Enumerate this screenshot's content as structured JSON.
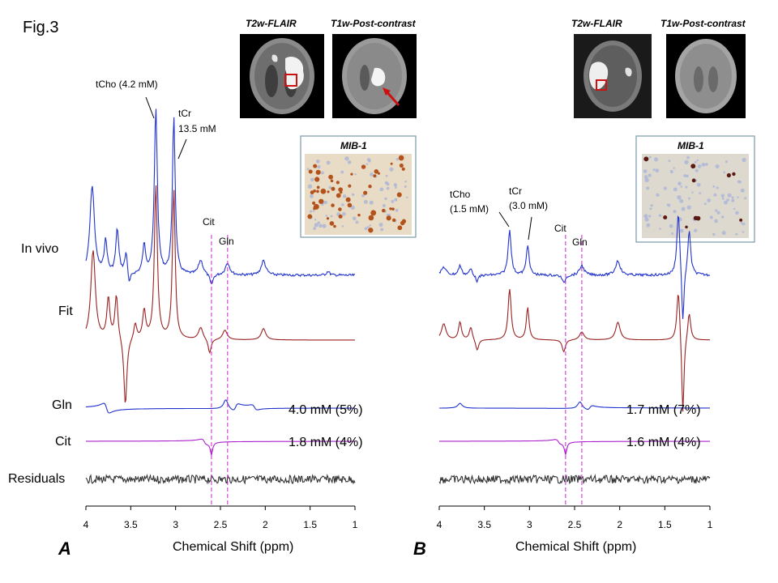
{
  "figure_label": "Fig.3",
  "row_labels": {
    "invivo": "In vivo",
    "fit": "Fit",
    "gln": "Gln",
    "cit": "Cit",
    "residuals": "Residuals"
  },
  "axis": {
    "xlabel": "Chemical Shift (ppm)",
    "ticks": [
      "4",
      "3.5",
      "3",
      "2.5",
      "2",
      "1.5",
      "1"
    ]
  },
  "colors": {
    "invivo": "#2233cc",
    "fit": "#992222",
    "gln": "#2233cc",
    "cit": "#aa22cc",
    "residuals": "#333333",
    "marker": "#cc22cc"
  },
  "panels": {
    "A": {
      "letter": "A",
      "mri_label_1": "T2w-FLAIR",
      "mri_label_2": "T1w-Post-contrast",
      "stain_label": "MIB-1",
      "tcho": "tCho (4.2 mM)",
      "tcr_1": "tCr",
      "tcr_2": "13.5 mM",
      "cit_marker": "Cit",
      "gln_marker": "Gln",
      "gln_conc": "4.0 mM (5%)",
      "cit_conc": "1.8 mM (4%)"
    },
    "B": {
      "letter": "B",
      "mri_label_1": "T2w-FLAIR",
      "mri_label_2": "T1w-Post-contrast",
      "stain_label": "MIB-1",
      "tcho_1": "tCho",
      "tcho_2": "(1.5 mM)",
      "tcr_1": "tCr",
      "tcr_2": "(3.0 mM)",
      "cit_marker": "Cit",
      "gln_marker": "Gln",
      "gln_conc": "1.7 mM (7%)",
      "cit_conc": "1.6 mM (4%)"
    }
  },
  "chart_data": [
    {
      "type": "line",
      "panel": "A",
      "xlabel": "Chemical Shift (ppm)",
      "xlim": [
        4,
        1
      ],
      "x_ticks": [
        4,
        3.5,
        3,
        2.5,
        2,
        1.5,
        1
      ],
      "series": [
        {
          "name": "In vivo",
          "peaks": [
            {
              "ppm": 3.22,
              "label": "tCho",
              "conc_mM": 4.2
            },
            {
              "ppm": 3.02,
              "label": "tCr",
              "conc_mM": 13.5
            }
          ]
        },
        {
          "name": "Fit"
        },
        {
          "name": "Gln",
          "conc_mM": 4.0,
          "crlb_pct": 5
        },
        {
          "name": "Cit",
          "conc_mM": 1.8,
          "crlb_pct": 4
        },
        {
          "name": "Residuals"
        }
      ],
      "markers": [
        {
          "ppm": 2.6,
          "label": "Cit"
        },
        {
          "ppm": 2.42,
          "label": "Gln"
        }
      ]
    },
    {
      "type": "line",
      "panel": "B",
      "xlabel": "Chemical Shift (ppm)",
      "xlim": [
        4,
        1
      ],
      "x_ticks": [
        4,
        3.5,
        3,
        2.5,
        2,
        1.5,
        1
      ],
      "series": [
        {
          "name": "In vivo",
          "peaks": [
            {
              "ppm": 3.22,
              "label": "tCho",
              "conc_mM": 1.5
            },
            {
              "ppm": 3.02,
              "label": "tCr",
              "conc_mM": 3.0
            }
          ]
        },
        {
          "name": "Fit"
        },
        {
          "name": "Gln",
          "conc_mM": 1.7,
          "crlb_pct": 7
        },
        {
          "name": "Cit",
          "conc_mM": 1.6,
          "crlb_pct": 4
        },
        {
          "name": "Residuals"
        }
      ],
      "markers": [
        {
          "ppm": 2.6,
          "label": "Cit"
        },
        {
          "ppm": 2.42,
          "label": "Gln"
        }
      ]
    }
  ]
}
